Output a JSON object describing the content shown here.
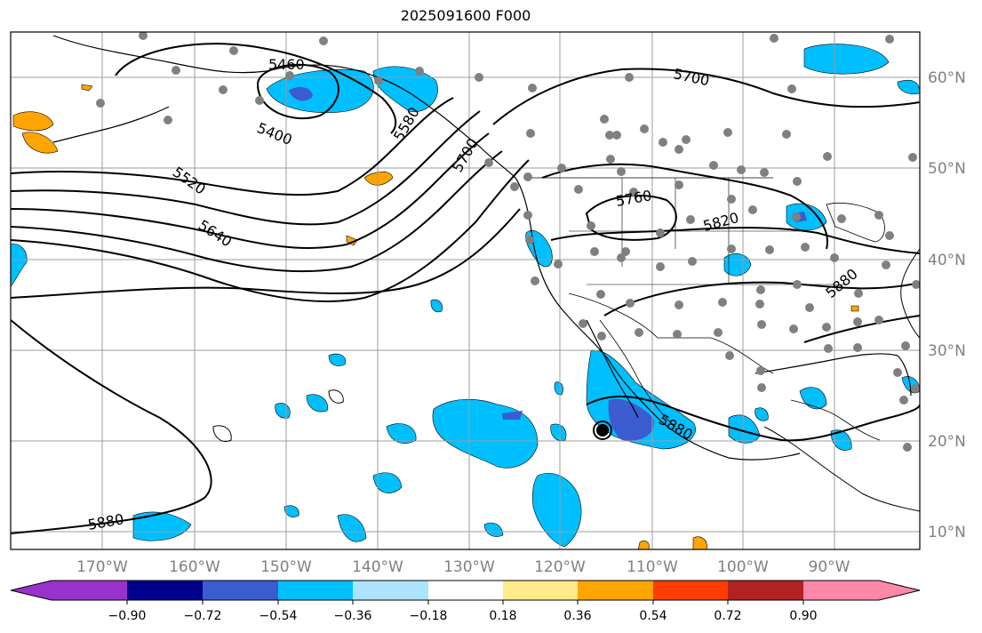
{
  "title": "2025091600 F000",
  "map": {
    "lon_labels": [
      "170°W",
      "160°W",
      "150°W",
      "140°W",
      "130°W",
      "120°W",
      "110°W",
      "100°W",
      "90°W"
    ],
    "lat_labels": [
      "60°N",
      "50°N",
      "40°N",
      "30°N",
      "20°N",
      "10°N"
    ],
    "contour_labels": [
      "5460",
      "5400",
      "5520",
      "5640",
      "5580",
      "5700",
      "5700",
      "5760",
      "5820",
      "5880",
      "5880",
      "5880"
    ],
    "colors": {
      "contour": "#000000",
      "grid": "#9e9e9e",
      "station_dot": "#808080",
      "axis_label": "#808080"
    }
  },
  "colorbar": {
    "tick_labels": [
      "−0.90",
      "−0.72",
      "−0.54",
      "−0.36",
      "−0.18",
      "0.18",
      "0.36",
      "0.54",
      "0.72",
      "0.90"
    ],
    "colors": [
      "#9932CC",
      "#00008B",
      "#3A5CCF",
      "#00BFFF",
      "#ADE3FF",
      "#FFFFFF",
      "#FFEB8A",
      "#FFA500",
      "#FF3D00",
      "#B22222",
      "#FF88AA"
    ]
  }
}
